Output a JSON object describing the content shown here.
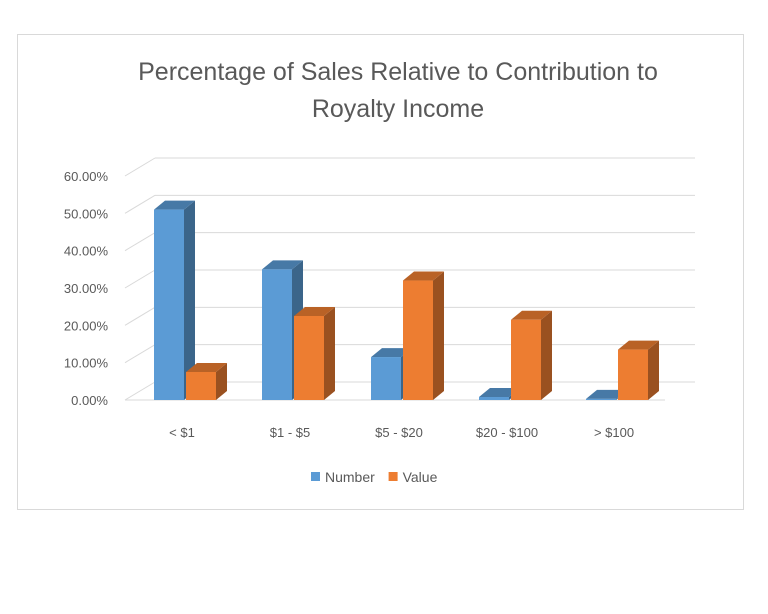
{
  "chart_data": {
    "type": "bar",
    "title_lines": [
      "Percentage of Sales Relative to Contribution to",
      "Royalty Income"
    ],
    "categories": [
      "< $1",
      "$1 - $5",
      "$5 - $20",
      "$20 - $100",
      "> $100"
    ],
    "series": [
      {
        "name": "Number",
        "values": [
          0.51,
          0.35,
          0.115,
          0.008,
          0.003
        ],
        "color": "#5b9bd5"
      },
      {
        "name": "Value",
        "values": [
          0.075,
          0.225,
          0.32,
          0.215,
          0.135
        ],
        "color": "#ed7d31"
      }
    ],
    "y_ticks": [
      "0.00%",
      "10.00%",
      "20.00%",
      "30.00%",
      "40.00%",
      "50.00%",
      "60.00%"
    ],
    "ylim": [
      0,
      0.6
    ],
    "grid": true,
    "legend_position": "bottom",
    "style": "3d-clustered-column"
  }
}
